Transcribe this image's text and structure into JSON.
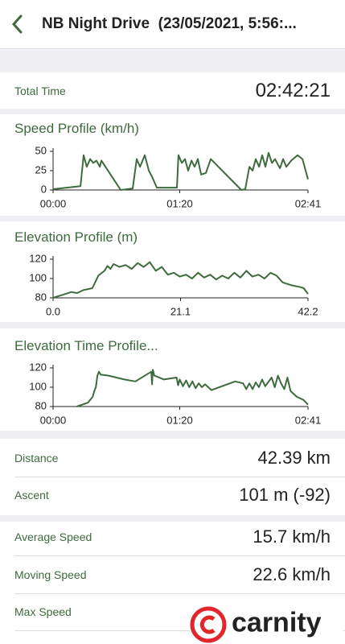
{
  "header": {
    "title": "NB Night Drive  (23/05/2021, 5:56:..."
  },
  "total_time": {
    "label": "Total Time",
    "value": "02:42:21"
  },
  "chart_data": [
    {
      "type": "line",
      "title": "Speed Profile (km/h)",
      "color": "#3d6b3d",
      "x": [
        0,
        17.3,
        19.3,
        21.3,
        23.4,
        25.4,
        27.4,
        29.5,
        30.5,
        42.7,
        50.3,
        52.8,
        54.9,
        57.9,
        60.5,
        63,
        65.5,
        78.2,
        79.2,
        81.3,
        83.3,
        85.3,
        87.4,
        89.4,
        91.4,
        93.5,
        96.5,
        99.6,
        118.9,
        121.4,
        124,
        126,
        128,
        130.1,
        132.1,
        134.1,
        136.1,
        138.2,
        140.2,
        143.3,
        145.3,
        147.3,
        150.4,
        154.4,
        157.5,
        161
      ],
      "values": [
        1,
        5,
        45,
        30,
        40,
        35,
        38,
        30,
        38,
        0,
        2,
        40,
        30,
        45,
        25,
        15,
        3,
        3,
        45,
        35,
        40,
        25,
        38,
        30,
        40,
        20,
        22,
        40,
        0,
        1,
        30,
        25,
        40,
        30,
        45,
        30,
        48,
        35,
        40,
        28,
        40,
        30,
        38,
        45,
        40,
        14
      ],
      "xlim": [
        0,
        161
      ],
      "ylim": [
        0,
        50
      ],
      "xticks": [
        {
          "value": 0,
          "label": "00:00"
        },
        {
          "value": 80,
          "label": "01:20"
        },
        {
          "value": 161,
          "label": "02:41"
        }
      ],
      "yticks": [
        0,
        25,
        50
      ]
    },
    {
      "type": "line",
      "title": "Elevation Profile (m)",
      "color": "#3d6b3d",
      "x": [
        0,
        1.5,
        3,
        4,
        5,
        6.5,
        7.5,
        8.5,
        9,
        9.5,
        10,
        11,
        12,
        13,
        14,
        15,
        16,
        17,
        18,
        19,
        20,
        21,
        22,
        23,
        24,
        25,
        26,
        27,
        28,
        29,
        30,
        31,
        32,
        33,
        34,
        35,
        36,
        37,
        38,
        39.5,
        41,
        41.5,
        42.2
      ],
      "values": [
        80,
        83,
        86,
        85,
        88,
        90,
        103,
        108,
        113,
        110,
        115,
        112,
        114,
        110,
        116,
        112,
        117,
        108,
        112,
        104,
        106,
        102,
        104,
        100,
        106,
        101,
        104,
        99,
        103,
        100,
        106,
        101,
        108,
        102,
        104,
        100,
        106,
        103,
        96,
        93,
        91,
        90,
        84
      ],
      "xlim": [
        0,
        42.2
      ],
      "ylim": [
        80,
        120
      ],
      "xticks": [
        {
          "value": 0,
          "label": "0.0"
        },
        21.1,
        42.2
      ],
      "yticks": [
        80,
        100,
        120
      ]
    },
    {
      "type": "line",
      "title": "Elevation Time Profile...",
      "color": "#3d6b3d",
      "x": [
        15,
        22,
        25,
        26,
        27,
        28,
        29,
        30,
        35,
        45,
        52,
        60,
        62,
        62.5,
        63,
        64,
        70,
        78,
        79,
        80,
        82,
        84,
        86,
        88,
        90,
        92,
        94,
        96,
        100,
        115,
        120,
        122,
        124,
        126,
        128,
        130,
        132,
        134,
        138,
        140,
        142,
        144,
        146,
        148,
        150,
        154,
        158,
        161
      ],
      "values": [
        80,
        84,
        90,
        96,
        100,
        112,
        116,
        113,
        112,
        108,
        106,
        114,
        116,
        103,
        118,
        112,
        108,
        110,
        102,
        108,
        101,
        107,
        100,
        106,
        99,
        104,
        100,
        103,
        97,
        106,
        104,
        98,
        104,
        98,
        105,
        100,
        108,
        101,
        110,
        100,
        112,
        104,
        98,
        110,
        96,
        90,
        87,
        82
      ],
      "xlim": [
        0,
        161
      ],
      "ylim": [
        80,
        120
      ],
      "xticks": [
        {
          "value": 0,
          "label": "00:00"
        },
        {
          "value": 80,
          "label": "01:20"
        },
        {
          "value": 161,
          "label": "02:41"
        }
      ],
      "yticks": [
        80,
        100,
        120
      ]
    }
  ],
  "distance_stats": [
    {
      "label": "Distance",
      "value": "42.39 km"
    },
    {
      "label": "Ascent",
      "value": "101 m (-92)"
    }
  ],
  "speed_stats": [
    {
      "label": "Average Speed",
      "value": "15.7 km/h"
    },
    {
      "label": "Moving Speed",
      "value": "22.6 km/h"
    },
    {
      "label": "Max Speed"
    }
  ],
  "watermark": "carnity"
}
